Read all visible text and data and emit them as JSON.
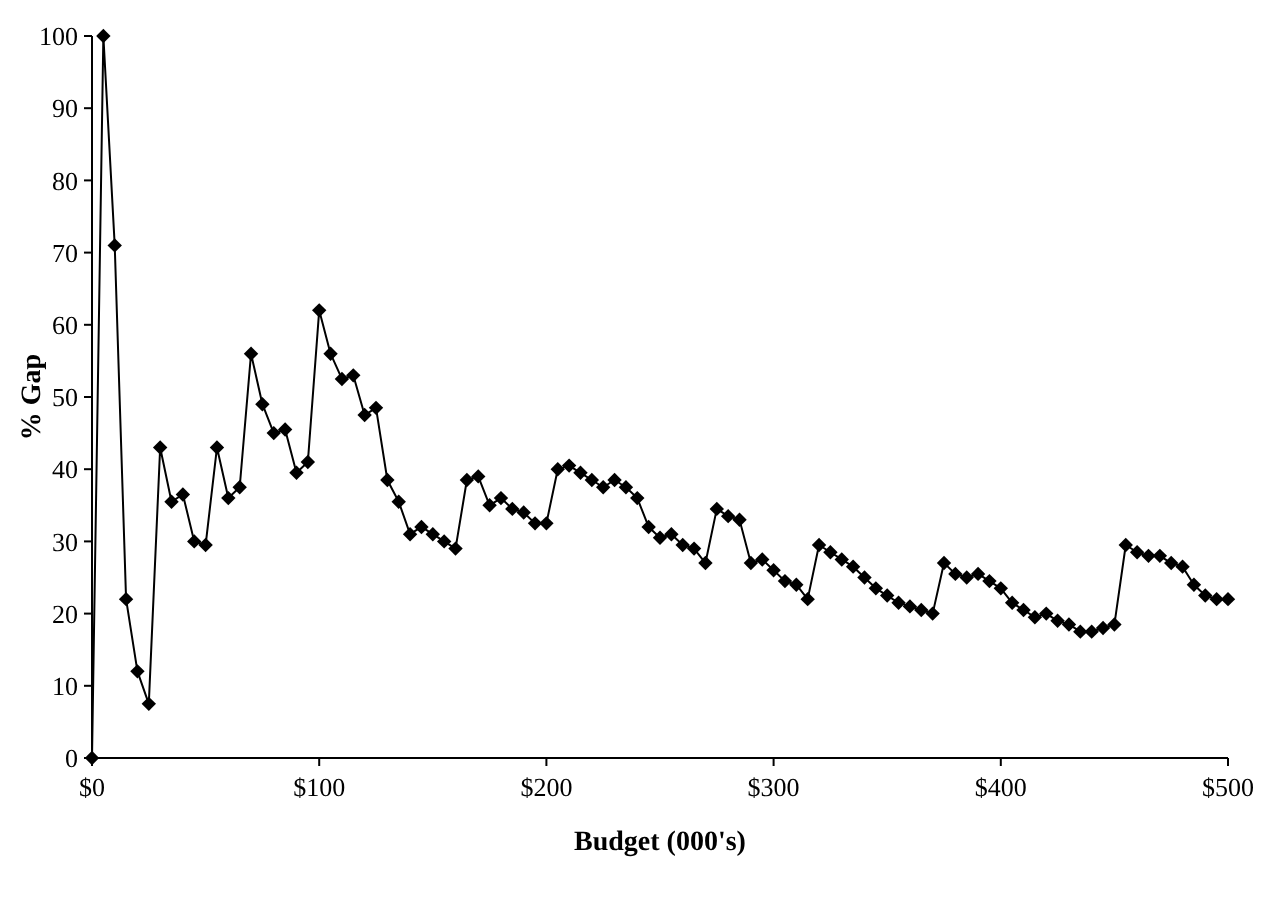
{
  "chart_data": {
    "type": "line",
    "xlabel": "Budget (000's)",
    "ylabel": "% Gap",
    "marker": "diamond",
    "line_style": "solid",
    "grid": false,
    "x": [
      0,
      5,
      10,
      15,
      20,
      25,
      30,
      35,
      40,
      45,
      50,
      55,
      60,
      65,
      70,
      75,
      80,
      85,
      90,
      95,
      100,
      105,
      110,
      115,
      120,
      125,
      130,
      135,
      140,
      145,
      150,
      155,
      160,
      165,
      170,
      175,
      180,
      185,
      190,
      195,
      200,
      205,
      210,
      215,
      220,
      225,
      230,
      235,
      240,
      245,
      250,
      255,
      260,
      265,
      270,
      275,
      280,
      285,
      290,
      295,
      300,
      305,
      310,
      315,
      320,
      325,
      330,
      335,
      340,
      345,
      350,
      355,
      360,
      365,
      370,
      375,
      380,
      385,
      390,
      395,
      400,
      405,
      410,
      415,
      420,
      425,
      430,
      435,
      440,
      445,
      450,
      455,
      460,
      465,
      470,
      475,
      480,
      485,
      490,
      495,
      500
    ],
    "series": [
      {
        "color": "#000000",
        "values": [
          0,
          100,
          71,
          22,
          12,
          7.5,
          43,
          35.5,
          36.5,
          30,
          29.5,
          43,
          36,
          37.5,
          56,
          49,
          45,
          45.5,
          39.5,
          41,
          62,
          56,
          52.5,
          53,
          47.5,
          48.5,
          38.5,
          35.5,
          31,
          32,
          31,
          30,
          29,
          38.5,
          39,
          35,
          36,
          34.5,
          34,
          32.5,
          32.5,
          40,
          40.5,
          39.5,
          38.5,
          37.5,
          38.5,
          37.5,
          36,
          32,
          30.5,
          31,
          29.5,
          29,
          27,
          34.5,
          33.5,
          33,
          27,
          27.5,
          26,
          24.5,
          24,
          22,
          29.5,
          28.5,
          27.5,
          26.5,
          25,
          23.5,
          22.5,
          21.5,
          21,
          20.5,
          20,
          27,
          25.5,
          25,
          25.5,
          24.5,
          23.5,
          21.5,
          20.5,
          19.5,
          20,
          19,
          18.5,
          17.5,
          17.5,
          18,
          18.5,
          29.5,
          28.5,
          28,
          28,
          27,
          26.5,
          24,
          22.5,
          22,
          22
        ]
      }
    ],
    "xlim": [
      0,
      500
    ],
    "xticks": [
      {
        "value": 0,
        "label": "$0"
      },
      {
        "value": 100,
        "label": "$100"
      },
      {
        "value": 200,
        "label": "$200"
      },
      {
        "value": 300,
        "label": "$300"
      },
      {
        "value": 400,
        "label": "$400"
      },
      {
        "value": 500,
        "label": "$500"
      }
    ],
    "ylim": [
      0,
      100
    ],
    "yticks": [
      0,
      10,
      20,
      30,
      40,
      50,
      60,
      70,
      80,
      90,
      100
    ]
  }
}
